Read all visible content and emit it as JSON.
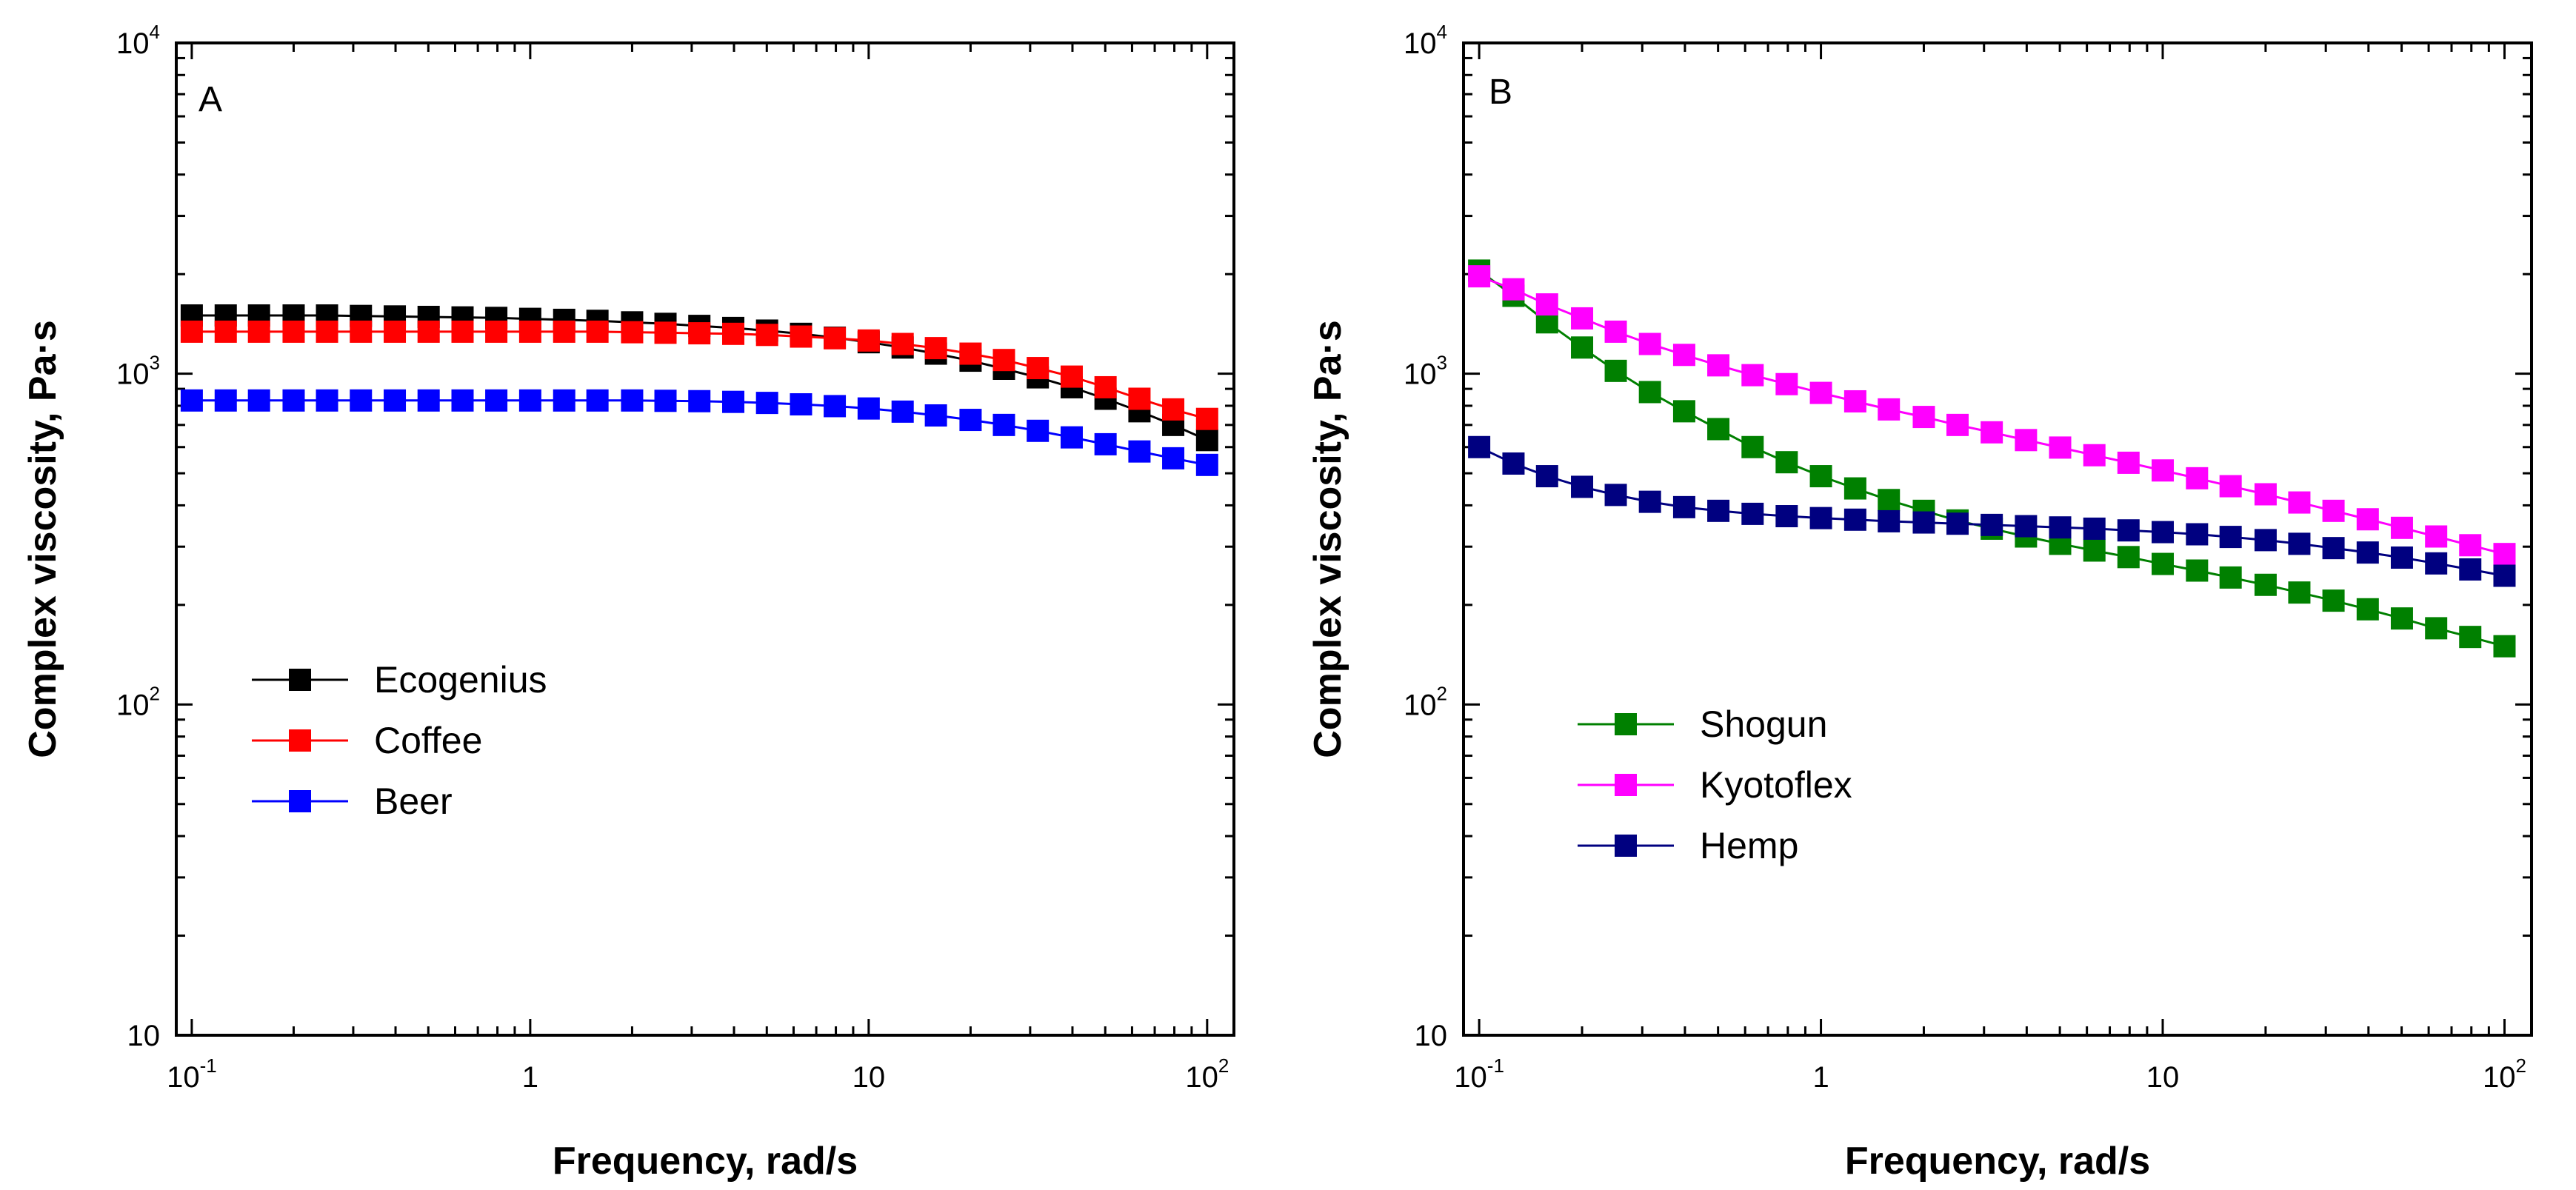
{
  "chart_data": [
    {
      "type": "line",
      "panel_label": "A",
      "xlabel": "Frequency, rad/s",
      "ylabel": "Complex viscosity, Pa·s",
      "x_scale": "log",
      "y_scale": "log",
      "xlim": [
        0.09,
        120
      ],
      "ylim": [
        10,
        10000
      ],
      "x_ticks": [
        {
          "value": 0.1,
          "base": "10",
          "exp": "-1"
        },
        {
          "value": 1,
          "base": "1",
          "exp": ""
        },
        {
          "value": 10,
          "base": "10",
          "exp": ""
        },
        {
          "value": 100,
          "base": "10",
          "exp": "2"
        }
      ],
      "y_ticks": [
        {
          "value": 10,
          "base": "10",
          "exp": ""
        },
        {
          "value": 100,
          "base": "10",
          "exp": "2"
        },
        {
          "value": 1000,
          "base": "10",
          "exp": "3"
        },
        {
          "value": 10000,
          "base": "10",
          "exp": "4"
        }
      ],
      "grid": false,
      "legend_position": "center-left",
      "x": [
        0.1,
        0.126,
        0.158,
        0.2,
        0.251,
        0.316,
        0.398,
        0.501,
        0.631,
        0.794,
        1,
        1.26,
        1.58,
        2,
        2.51,
        3.16,
        3.98,
        5.01,
        6.31,
        7.94,
        10,
        12.6,
        15.8,
        20,
        25.1,
        31.6,
        39.8,
        50.1,
        63.1,
        79.4,
        100
      ],
      "series": [
        {
          "name": "Ecogenius",
          "color": "#000000",
          "values": [
            1500,
            1500,
            1500,
            1500,
            1500,
            1495,
            1490,
            1485,
            1480,
            1475,
            1465,
            1455,
            1445,
            1430,
            1415,
            1395,
            1375,
            1350,
            1320,
            1285,
            1245,
            1200,
            1150,
            1095,
            1035,
            975,
            910,
            840,
            770,
            700,
            630
          ]
        },
        {
          "name": "Coffee",
          "color": "#ff0000",
          "values": [
            1340,
            1340,
            1340,
            1340,
            1340,
            1340,
            1340,
            1340,
            1340,
            1340,
            1340,
            1340,
            1340,
            1335,
            1330,
            1325,
            1320,
            1310,
            1295,
            1280,
            1260,
            1230,
            1195,
            1150,
            1100,
            1040,
            980,
            910,
            840,
            780,
            730
          ]
        },
        {
          "name": "Beer",
          "color": "#0000ff",
          "values": [
            830,
            830,
            830,
            830,
            830,
            830,
            830,
            830,
            830,
            830,
            830,
            830,
            830,
            830,
            828,
            826,
            822,
            816,
            808,
            798,
            785,
            768,
            748,
            725,
            700,
            672,
            642,
            612,
            582,
            555,
            530
          ]
        }
      ]
    },
    {
      "type": "line",
      "panel_label": "B",
      "xlabel": "Frequency, rad/s",
      "ylabel": "Complex viscosity, Pa·s",
      "x_scale": "log",
      "y_scale": "log",
      "xlim": [
        0.09,
        120
      ],
      "ylim": [
        10,
        10000
      ],
      "x_ticks": [
        {
          "value": 0.1,
          "base": "10",
          "exp": "-1"
        },
        {
          "value": 1,
          "base": "1",
          "exp": ""
        },
        {
          "value": 10,
          "base": "10",
          "exp": ""
        },
        {
          "value": 100,
          "base": "10",
          "exp": "2"
        }
      ],
      "y_ticks": [
        {
          "value": 10,
          "base": "10",
          "exp": ""
        },
        {
          "value": 100,
          "base": "10",
          "exp": "2"
        },
        {
          "value": 1000,
          "base": "10",
          "exp": "3"
        },
        {
          "value": 10000,
          "base": "10",
          "exp": "4"
        }
      ],
      "grid": false,
      "legend_position": "center-left",
      "x": [
        0.1,
        0.126,
        0.158,
        0.2,
        0.251,
        0.316,
        0.398,
        0.501,
        0.631,
        0.794,
        1,
        1.26,
        1.58,
        2,
        2.51,
        3.16,
        3.98,
        5.01,
        6.31,
        7.94,
        10,
        12.6,
        15.8,
        20,
        25.1,
        31.6,
        39.8,
        50.1,
        63.1,
        79.4,
        100
      ],
      "series": [
        {
          "name": "Shogun",
          "color": "#008000",
          "values": [
            2050,
            1720,
            1430,
            1200,
            1020,
            880,
            770,
            680,
            600,
            540,
            490,
            450,
            415,
            385,
            360,
            340,
            322,
            306,
            292,
            279,
            266,
            254,
            242,
            230,
            218,
            206,
            194,
            182,
            170,
            160,
            150
          ]
        },
        {
          "name": "Kyotoflex",
          "color": "#ff00ff",
          "values": [
            1970,
            1800,
            1620,
            1470,
            1340,
            1230,
            1140,
            1060,
            990,
            930,
            875,
            825,
            780,
            740,
            700,
            665,
            630,
            598,
            567,
            538,
            510,
            483,
            457,
            432,
            408,
            385,
            363,
            342,
            322,
            303,
            285
          ]
        },
        {
          "name": "Hemp",
          "color": "#000080",
          "values": [
            600,
            535,
            490,
            455,
            430,
            410,
            395,
            385,
            377,
            371,
            366,
            362,
            358,
            355,
            352,
            349,
            346,
            343,
            340,
            336,
            332,
            327,
            321,
            314,
            306,
            297,
            288,
            278,
            267,
            256,
            245
          ]
        }
      ]
    }
  ]
}
